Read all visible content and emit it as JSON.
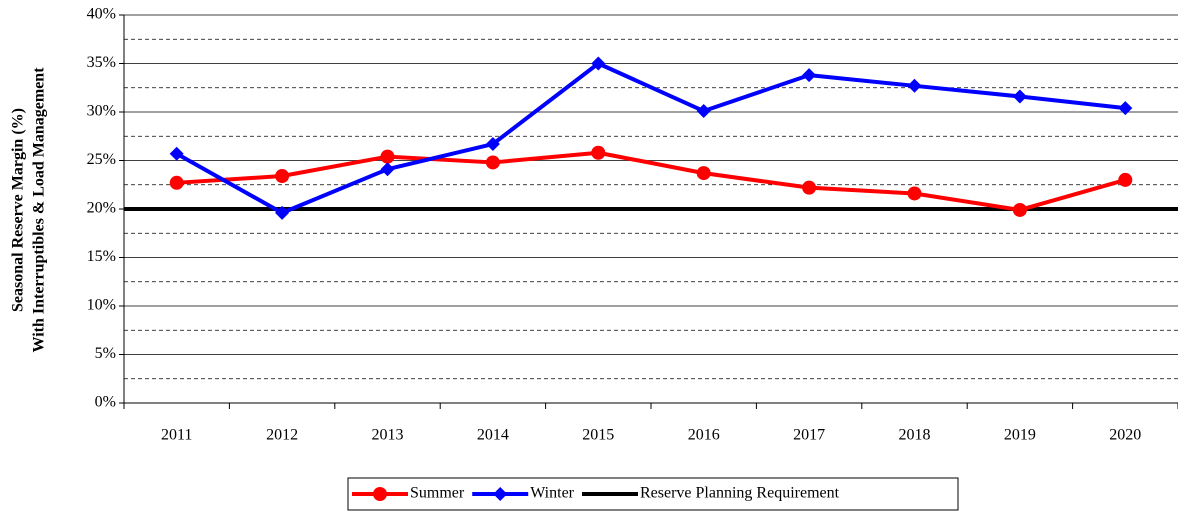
{
  "chart_data": {
    "type": "line",
    "ylabel": [
      "Seasonal Reserve Margin (%)",
      "With Interruptibles & Load Management"
    ],
    "categories": [
      "2011",
      "2012",
      "2013",
      "2014",
      "2015",
      "2016",
      "2017",
      "2018",
      "2019",
      "2020"
    ],
    "series": [
      {
        "name": "Summer",
        "color": "#ff0000",
        "marker": "circle",
        "values": [
          22.7,
          23.4,
          25.4,
          24.8,
          25.8,
          23.7,
          22.2,
          21.6,
          19.9,
          23.0
        ]
      },
      {
        "name": "Winter",
        "color": "#0000ff",
        "marker": "diamond",
        "values": [
          25.7,
          19.6,
          24.1,
          26.7,
          35.0,
          30.1,
          33.8,
          32.7,
          31.6,
          30.4
        ]
      }
    ],
    "reference_line": {
      "name": "Reserve Planning Requirement",
      "value": 20,
      "color": "#000000"
    },
    "ylim": [
      0,
      40
    ],
    "yticks": [
      {
        "value": 0,
        "label": "0%"
      },
      {
        "value": 5,
        "label": "5%"
      },
      {
        "value": 10,
        "label": "10%"
      },
      {
        "value": 15,
        "label": "15%"
      },
      {
        "value": 20,
        "label": "20%"
      },
      {
        "value": 25,
        "label": "25%"
      },
      {
        "value": 30,
        "label": "30%"
      },
      {
        "value": 35,
        "label": "35%"
      },
      {
        "value": 40,
        "label": "40%"
      }
    ],
    "minor_yticks": [
      2.5,
      7.5,
      12.5,
      17.5,
      22.5,
      27.5,
      32.5,
      37.5
    ],
    "grid": true,
    "legend": "bottom"
  }
}
